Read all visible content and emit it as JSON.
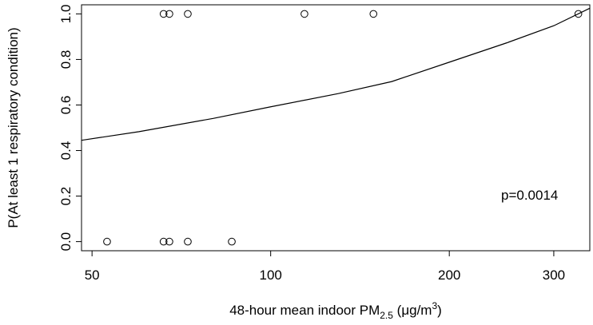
{
  "chart_data": {
    "type": "scatter",
    "x_scale": "log",
    "xlabel": {
      "prefix": "48-hour mean indoor PM",
      "subscript": "2.5",
      "unit_open": " (",
      "mu": "μ",
      "unit_mid": "g/m",
      "superscript": "3",
      "unit_close": ")"
    },
    "ylabel": "P(At least 1 respiratory condition)",
    "xlim": [
      48,
      345
    ],
    "ylim": [
      -0.04,
      1.04
    ],
    "x_ticks": [
      50,
      100,
      200,
      300
    ],
    "x_tick_labels": [
      "50",
      "100",
      "200",
      "300"
    ],
    "y_ticks": [
      0.0,
      0.2,
      0.4,
      0.6,
      0.8,
      1.0
    ],
    "y_tick_labels": [
      "0.0",
      "0.2",
      "0.4",
      "0.6",
      "0.8",
      "1.0"
    ],
    "grid": false,
    "points": [
      {
        "x": 53,
        "y": 0
      },
      {
        "x": 66,
        "y": 0
      },
      {
        "x": 67.5,
        "y": 0
      },
      {
        "x": 72.5,
        "y": 0
      },
      {
        "x": 86,
        "y": 0
      },
      {
        "x": 66,
        "y": 1
      },
      {
        "x": 67.5,
        "y": 1
      },
      {
        "x": 72.5,
        "y": 1
      },
      {
        "x": 114,
        "y": 1
      },
      {
        "x": 149,
        "y": 1
      },
      {
        "x": 330,
        "y": 1
      }
    ],
    "fit_curve": {
      "type": "logistic",
      "x": [
        48,
        60,
        80,
        100,
        130,
        160,
        200,
        250,
        300,
        345
      ],
      "y": [
        0.445,
        0.483,
        0.541,
        0.592,
        0.65,
        0.703,
        0.788,
        0.873,
        0.948,
        1.025
      ]
    },
    "annotation": "p=0.0014"
  }
}
